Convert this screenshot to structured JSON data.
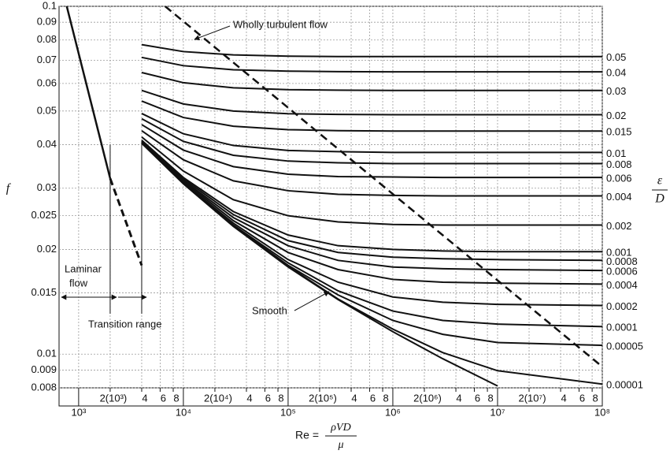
{
  "chart_data": {
    "type": "line",
    "log_x": true,
    "log_y": true,
    "grid": true,
    "color": "#111111",
    "xlim": [
      650,
      100000000
    ],
    "ylim": [
      0.008,
      0.1
    ],
    "yticks": [
      0.008,
      0.009,
      0.01,
      0.015,
      0.02,
      0.025,
      0.03,
      0.04,
      0.05,
      0.06,
      0.07,
      0.08,
      0.09,
      0.1
    ],
    "xticks": [
      {
        "value": 1000,
        "label": "10³"
      },
      {
        "value": 2000,
        "label": "2(10³)"
      },
      {
        "value": 4000,
        "label": "4"
      },
      {
        "value": 6000,
        "label": "6"
      },
      {
        "value": 8000,
        "label": "8"
      },
      {
        "value": 10000,
        "label": "10⁴"
      },
      {
        "value": 20000,
        "label": "2(10⁴)"
      },
      {
        "value": 40000,
        "label": "4"
      },
      {
        "value": 60000,
        "label": "6"
      },
      {
        "value": 80000,
        "label": "8"
      },
      {
        "value": 100000,
        "label": "10⁵"
      },
      {
        "value": 200000,
        "label": "2(10⁵)"
      },
      {
        "value": 400000,
        "label": "4"
      },
      {
        "value": 600000,
        "label": "6"
      },
      {
        "value": 800000,
        "label": "8"
      },
      {
        "value": 1000000,
        "label": "10⁶"
      },
      {
        "value": 2000000,
        "label": "2(10⁶)"
      },
      {
        "value": 4000000,
        "label": "4"
      },
      {
        "value": 6000000,
        "label": "6"
      },
      {
        "value": 8000000,
        "label": "8"
      },
      {
        "value": 10000000,
        "label": "10⁷"
      },
      {
        "value": 20000000,
        "label": "2(10⁷)"
      },
      {
        "value": 40000000,
        "label": "4"
      },
      {
        "value": 60000000,
        "label": "6"
      },
      {
        "value": 80000000,
        "label": "8"
      },
      {
        "value": 100000000,
        "label": "10⁸"
      }
    ],
    "y_label": "f",
    "y2_label": {
      "numerator": "ε",
      "denominator": "D"
    },
    "x_label": {
      "lhs": "Re =",
      "numerator": "ρVD",
      "denominator": "μ"
    },
    "x": [
      4000,
      10000,
      30000,
      100000,
      300000,
      1000000,
      3000000,
      10000000,
      100000000
    ],
    "series": [
      {
        "name": "0.05",
        "values": [
          0.0776,
          0.0741,
          0.0725,
          0.0719,
          0.0717,
          0.0717,
          0.0717,
          0.0717,
          0.0717
        ]
      },
      {
        "name": "0.04",
        "values": [
          0.0713,
          0.0675,
          0.0657,
          0.0651,
          0.0649,
          0.0648,
          0.0648,
          0.0648,
          0.0648
        ]
      },
      {
        "name": "0.03",
        "values": [
          0.0645,
          0.0603,
          0.0583,
          0.0576,
          0.0574,
          0.0573,
          0.0573,
          0.0573,
          0.0573
        ]
      },
      {
        "name": "0.02",
        "values": [
          0.0573,
          0.0524,
          0.05,
          0.0491,
          0.0489,
          0.0488,
          0.0488,
          0.0488,
          0.0488
        ]
      },
      {
        "name": "0.015",
        "values": [
          0.0534,
          0.0479,
          0.0452,
          0.0442,
          0.0439,
          0.0438,
          0.0438,
          0.0438,
          0.0438
        ]
      },
      {
        "name": "0.01",
        "values": [
          0.0492,
          0.043,
          0.0398,
          0.0385,
          0.0382,
          0.038,
          0.038,
          0.038,
          0.038
        ]
      },
      {
        "name": "0.008",
        "values": [
          0.0475,
          0.0409,
          0.0373,
          0.0359,
          0.0355,
          0.0353,
          0.0353,
          0.0353,
          0.0353
        ]
      },
      {
        "name": "0.006",
        "values": [
          0.0457,
          0.0386,
          0.0346,
          0.0329,
          0.0324,
          0.0323,
          0.0322,
          0.0322,
          0.0322
        ]
      },
      {
        "name": "0.004",
        "values": [
          0.0439,
          0.0362,
          0.0315,
          0.0295,
          0.0288,
          0.0286,
          0.0285,
          0.0285,
          0.0285
        ]
      },
      {
        "name": "0.002",
        "values": [
          0.0421,
          0.0336,
          0.0278,
          0.025,
          0.024,
          0.0236,
          0.0235,
          0.0235,
          0.0235
        ]
      },
      {
        "name": "0.001",
        "values": [
          0.0412,
          0.0322,
          0.0257,
          0.022,
          0.0205,
          0.02,
          0.0198,
          0.0197,
          0.0197
        ]
      },
      {
        "name": "0.0008",
        "values": [
          0.041,
          0.0319,
          0.0252,
          0.0212,
          0.0196,
          0.019,
          0.0188,
          0.0187,
          0.0186
        ]
      },
      {
        "name": "0.0006",
        "values": [
          0.0409,
          0.0316,
          0.0247,
          0.0205,
          0.0186,
          0.0178,
          0.0176,
          0.0175,
          0.0174
        ]
      },
      {
        "name": "0.0004",
        "values": [
          0.0407,
          0.0314,
          0.0242,
          0.0196,
          0.0175,
          0.0164,
          0.0161,
          0.016,
          0.0159
        ]
      },
      {
        "name": "0.0002",
        "values": [
          0.0406,
          0.0311,
          0.0238,
          0.0187,
          0.0161,
          0.0146,
          0.0141,
          0.0139,
          0.0138
        ]
      },
      {
        "name": "0.0001",
        "values": [
          0.0405,
          0.031,
          0.0235,
          0.0183,
          0.0152,
          0.0133,
          0.0125,
          0.0122,
          0.012
        ]
      },
      {
        "name": "0.00005",
        "values": [
          0.0405,
          0.0309,
          0.0234,
          0.018,
          0.0148,
          0.0125,
          0.0114,
          0.0108,
          0.0106
        ]
      },
      {
        "name": "0.00001",
        "values": [
          0.0404,
          0.0309,
          0.0233,
          0.0179,
          0.0144,
          0.0118,
          0.0101,
          0.00896,
          0.0082
        ]
      }
    ],
    "smooth": {
      "name": "Smooth",
      "values": [
        0.0404,
        0.0309,
        0.0233,
        0.0178,
        0.01435,
        0.0116,
        0.0097,
        0.0081,
        null
      ]
    },
    "laminar": {
      "label": [
        "Laminar",
        "flow"
      ],
      "x": [
        770,
        2000,
        4000
      ],
      "values": [
        0.1,
        0.032,
        0.018
      ],
      "segment_styles": [
        "solid",
        "dashed"
      ]
    },
    "wholly_turbulent": {
      "label": "Wholly turbulent flow",
      "x": [
        6700,
        100000000
      ],
      "values": [
        0.1,
        0.0092
      ]
    },
    "transition_range": {
      "label": "Transition range",
      "x": [
        2000,
        4000
      ]
    }
  }
}
